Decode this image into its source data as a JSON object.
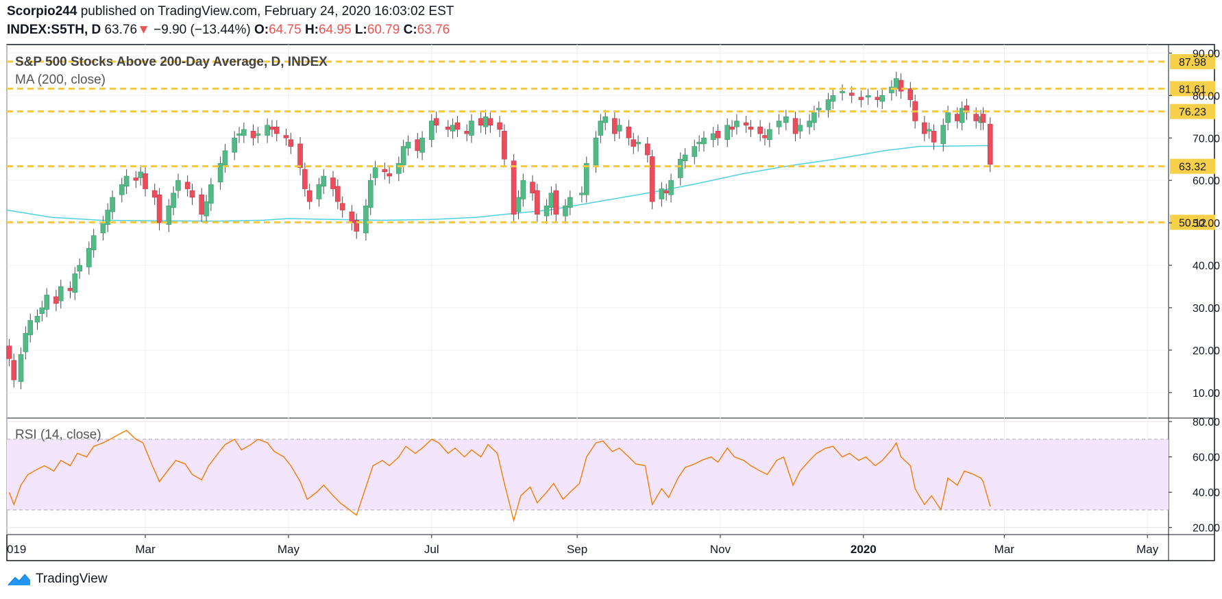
{
  "header": {
    "author": "Scorpio244",
    "published_text": "published on TradingView.com, February 24, 2020 16:03:02 EST",
    "symbol": "INDEX:S5TH, D",
    "last": "63.76",
    "change_arrow": "▼",
    "change": "−9.90 (−13.44%)",
    "open_label": "O:",
    "open": "64.75",
    "high_label": "H:",
    "high": "64.95",
    "low_label": "L:",
    "low": "60.79",
    "close_label": "C:",
    "close": "63.76"
  },
  "panes": {
    "main_title": "S&P 500 Stocks Above 200-Day Average, D, INDEX",
    "ma_title": "MA (200, close)",
    "rsi_title": "RSI (14, close)"
  },
  "logo": {
    "text": "TradingView",
    "icon": "tradingview-cloud-icon"
  },
  "colors": {
    "up": "#26a69a",
    "up_candle": "#53b987",
    "down": "#eb4d5c",
    "ma": "#4dd0e1",
    "rsi_line": "#f57c00",
    "rsi_band": "#f3e5fc",
    "level": "#f5c842",
    "level_label_bg": "#f7d04a"
  },
  "chart_data": {
    "type": "candlestick",
    "title": "S&P 500 Stocks Above 200-Day Average, D, INDEX",
    "x_range": [
      "2019-01-01",
      "2020-05-10"
    ],
    "x_ticks": [
      {
        "date": "2019-01-01",
        "label": "019"
      },
      {
        "date": "2019-03-01",
        "label": "Mar"
      },
      {
        "date": "2019-05-01",
        "label": "May"
      },
      {
        "date": "2019-07-01",
        "label": "Jul"
      },
      {
        "date": "2019-09-01",
        "label": "Sep"
      },
      {
        "date": "2019-11-01",
        "label": "Nov"
      },
      {
        "date": "2020-01-01",
        "label": "2020"
      },
      {
        "date": "2020-03-01",
        "label": "Mar"
      },
      {
        "date": "2020-05-01",
        "label": "May"
      }
    ],
    "y_range": [
      4,
      92
    ],
    "y_ticks": [
      "10.00",
      "20.00",
      "30.00",
      "40.00",
      "50.00",
      "60.00",
      "70.00",
      "80.00",
      "90.00"
    ],
    "horizontal_levels": [
      {
        "value": 87.98,
        "label": "87.98"
      },
      {
        "value": 81.61,
        "label": "81.61"
      },
      {
        "value": 76.23,
        "label": "76.23"
      },
      {
        "value": 63.32,
        "label": "63.32"
      },
      {
        "value": 50.12,
        "label": "50.12"
      }
    ],
    "close_series": [
      [
        "2019-01-02",
        18
      ],
      [
        "2019-01-04",
        13
      ],
      [
        "2019-01-07",
        19
      ],
      [
        "2019-01-09",
        24
      ],
      [
        "2019-01-11",
        27
      ],
      [
        "2019-01-14",
        28
      ],
      [
        "2019-01-16",
        30
      ],
      [
        "2019-01-18",
        33
      ],
      [
        "2019-01-22",
        31
      ],
      [
        "2019-01-24",
        35
      ],
      [
        "2019-01-28",
        34
      ],
      [
        "2019-01-30",
        38
      ],
      [
        "2019-02-01",
        40
      ],
      [
        "2019-02-05",
        44
      ],
      [
        "2019-02-07",
        47
      ],
      [
        "2019-02-11",
        50
      ],
      [
        "2019-02-13",
        53
      ],
      [
        "2019-02-15",
        56
      ],
      [
        "2019-02-19",
        59
      ],
      [
        "2019-02-21",
        61
      ],
      [
        "2019-02-25",
        60
      ],
      [
        "2019-02-27",
        62
      ],
      [
        "2019-03-01",
        58
      ],
      [
        "2019-03-05",
        56
      ],
      [
        "2019-03-07",
        50
      ],
      [
        "2019-03-11",
        54
      ],
      [
        "2019-03-13",
        57
      ],
      [
        "2019-03-15",
        60
      ],
      [
        "2019-03-19",
        58
      ],
      [
        "2019-03-21",
        56
      ],
      [
        "2019-03-25",
        52
      ],
      [
        "2019-03-27",
        55
      ],
      [
        "2019-03-29",
        59
      ],
      [
        "2019-04-02",
        64
      ],
      [
        "2019-04-04",
        67
      ],
      [
        "2019-04-08",
        70
      ],
      [
        "2019-04-10",
        71
      ],
      [
        "2019-04-12",
        72
      ],
      [
        "2019-04-16",
        70
      ],
      [
        "2019-04-18",
        71
      ],
      [
        "2019-04-22",
        73
      ],
      [
        "2019-04-24",
        72
      ],
      [
        "2019-04-26",
        71
      ],
      [
        "2019-04-30",
        70
      ],
      [
        "2019-05-02",
        68
      ],
      [
        "2019-05-06",
        63
      ],
      [
        "2019-05-08",
        58
      ],
      [
        "2019-05-10",
        55
      ],
      [
        "2019-05-14",
        59
      ],
      [
        "2019-05-16",
        61
      ],
      [
        "2019-05-20",
        58
      ],
      [
        "2019-05-22",
        55
      ],
      [
        "2019-05-24",
        53
      ],
      [
        "2019-05-28",
        50
      ],
      [
        "2019-05-30",
        48
      ],
      [
        "2019-06-03",
        54
      ],
      [
        "2019-06-05",
        60
      ],
      [
        "2019-06-07",
        63
      ],
      [
        "2019-06-11",
        62
      ],
      [
        "2019-06-13",
        61
      ],
      [
        "2019-06-17",
        64
      ],
      [
        "2019-06-19",
        68
      ],
      [
        "2019-06-21",
        69
      ],
      [
        "2019-06-25",
        67
      ],
      [
        "2019-06-27",
        70
      ],
      [
        "2019-07-01",
        74
      ],
      [
        "2019-07-03",
        73
      ],
      [
        "2019-07-08",
        72
      ],
      [
        "2019-07-10",
        73
      ],
      [
        "2019-07-12",
        72
      ],
      [
        "2019-07-16",
        71
      ],
      [
        "2019-07-18",
        74
      ],
      [
        "2019-07-22",
        73
      ],
      [
        "2019-07-24",
        75
      ],
      [
        "2019-07-26",
        73
      ],
      [
        "2019-07-30",
        72
      ],
      [
        "2019-08-01",
        65
      ],
      [
        "2019-08-05",
        52
      ],
      [
        "2019-08-07",
        56
      ],
      [
        "2019-08-09",
        60
      ],
      [
        "2019-08-13",
        57
      ],
      [
        "2019-08-15",
        52
      ],
      [
        "2019-08-19",
        54
      ],
      [
        "2019-08-21",
        57
      ],
      [
        "2019-08-23",
        52
      ],
      [
        "2019-08-27",
        54
      ],
      [
        "2019-08-29",
        56
      ],
      [
        "2019-09-03",
        57
      ],
      [
        "2019-09-05",
        64
      ],
      [
        "2019-09-09",
        70
      ],
      [
        "2019-09-11",
        74
      ],
      [
        "2019-09-13",
        75
      ],
      [
        "2019-09-17",
        71
      ],
      [
        "2019-09-19",
        73
      ],
      [
        "2019-09-23",
        70
      ],
      [
        "2019-09-25",
        68
      ],
      [
        "2019-09-27",
        69
      ],
      [
        "2019-10-01",
        66
      ],
      [
        "2019-10-03",
        55
      ],
      [
        "2019-10-07",
        58
      ],
      [
        "2019-10-09",
        57
      ],
      [
        "2019-10-11",
        60
      ],
      [
        "2019-10-15",
        65
      ],
      [
        "2019-10-17",
        66
      ],
      [
        "2019-10-21",
        68
      ],
      [
        "2019-10-23",
        69
      ],
      [
        "2019-10-25",
        70
      ],
      [
        "2019-10-29",
        71
      ],
      [
        "2019-10-31",
        70
      ],
      [
        "2019-11-04",
        73
      ],
      [
        "2019-11-06",
        72
      ],
      [
        "2019-11-08",
        74
      ],
      [
        "2019-11-12",
        73
      ],
      [
        "2019-11-14",
        72
      ],
      [
        "2019-11-18",
        71
      ],
      [
        "2019-11-20",
        70
      ],
      [
        "2019-11-22",
        72
      ],
      [
        "2019-11-26",
        74
      ],
      [
        "2019-11-29",
        75
      ],
      [
        "2019-12-03",
        71
      ],
      [
        "2019-12-05",
        73
      ],
      [
        "2019-12-09",
        74
      ],
      [
        "2019-12-11",
        76
      ],
      [
        "2019-12-13",
        77
      ],
      [
        "2019-12-17",
        79
      ],
      [
        "2019-12-19",
        80
      ],
      [
        "2019-12-23",
        81
      ],
      [
        "2019-12-27",
        80
      ],
      [
        "2019-12-31",
        79
      ],
      [
        "2020-01-03",
        80
      ],
      [
        "2020-01-07",
        79
      ],
      [
        "2020-01-09",
        80
      ],
      [
        "2020-01-13",
        82
      ],
      [
        "2020-01-15",
        84
      ],
      [
        "2020-01-17",
        81
      ],
      [
        "2020-01-21",
        79
      ],
      [
        "2020-01-23",
        74
      ],
      [
        "2020-01-27",
        71
      ],
      [
        "2020-01-29",
        72
      ],
      [
        "2020-01-31",
        69
      ],
      [
        "2020-02-04",
        73
      ],
      [
        "2020-02-06",
        76
      ],
      [
        "2020-02-10",
        74
      ],
      [
        "2020-02-12",
        77
      ],
      [
        "2020-02-14",
        76
      ],
      [
        "2020-02-18",
        74
      ],
      [
        "2020-02-20",
        75
      ],
      [
        "2020-02-21",
        73.66
      ],
      [
        "2020-02-24",
        63.76
      ]
    ],
    "ma_series": [
      [
        "2019-01-01",
        53
      ],
      [
        "2019-01-20",
        51.3
      ],
      [
        "2019-02-10",
        50.6
      ],
      [
        "2019-03-01",
        50.5
      ],
      [
        "2019-04-01",
        50.4
      ],
      [
        "2019-04-20",
        50.6
      ],
      [
        "2019-05-01",
        51.0
      ],
      [
        "2019-05-20",
        50.8
      ],
      [
        "2019-06-10",
        50.6
      ],
      [
        "2019-07-01",
        50.8
      ],
      [
        "2019-07-20",
        51.3
      ],
      [
        "2019-08-01",
        52.0
      ],
      [
        "2019-08-20",
        53.0
      ],
      [
        "2019-09-10",
        55.0
      ],
      [
        "2019-10-01",
        57.0
      ],
      [
        "2019-10-20",
        59.0
      ],
      [
        "2019-11-10",
        61.5
      ],
      [
        "2019-12-01",
        63.5
      ],
      [
        "2019-12-20",
        65.0
      ],
      [
        "2020-01-10",
        67.0
      ],
      [
        "2020-01-25",
        68.0
      ],
      [
        "2020-02-24",
        68.2
      ]
    ],
    "rsi": {
      "y_range": [
        16,
        82
      ],
      "y_ticks": [
        "20.00",
        "40.00",
        "60.00",
        "80.00"
      ],
      "band": [
        30,
        70
      ],
      "series": [
        [
          "2019-01-02",
          40
        ],
        [
          "2019-01-04",
          33
        ],
        [
          "2019-01-07",
          44
        ],
        [
          "2019-01-10",
          50
        ],
        [
          "2019-01-14",
          53
        ],
        [
          "2019-01-17",
          55
        ],
        [
          "2019-01-21",
          52
        ],
        [
          "2019-01-24",
          58
        ],
        [
          "2019-01-28",
          55
        ],
        [
          "2019-01-31",
          62
        ],
        [
          "2019-02-04",
          60
        ],
        [
          "2019-02-07",
          66
        ],
        [
          "2019-02-11",
          68
        ],
        [
          "2019-02-14",
          70
        ],
        [
          "2019-02-18",
          73
        ],
        [
          "2019-02-21",
          75
        ],
        [
          "2019-02-25",
          70
        ],
        [
          "2019-02-28",
          68
        ],
        [
          "2019-03-04",
          55
        ],
        [
          "2019-03-07",
          46
        ],
        [
          "2019-03-11",
          53
        ],
        [
          "2019-03-14",
          58
        ],
        [
          "2019-03-18",
          56
        ],
        [
          "2019-03-21",
          50
        ],
        [
          "2019-03-25",
          47
        ],
        [
          "2019-03-28",
          55
        ],
        [
          "2019-04-01",
          62
        ],
        [
          "2019-04-04",
          67
        ],
        [
          "2019-04-08",
          70
        ],
        [
          "2019-04-11",
          64
        ],
        [
          "2019-04-15",
          67
        ],
        [
          "2019-04-18",
          70
        ],
        [
          "2019-04-22",
          68
        ],
        [
          "2019-04-25",
          63
        ],
        [
          "2019-04-29",
          60
        ],
        [
          "2019-05-02",
          55
        ],
        [
          "2019-05-06",
          46
        ],
        [
          "2019-05-09",
          36
        ],
        [
          "2019-05-13",
          40
        ],
        [
          "2019-05-16",
          44
        ],
        [
          "2019-05-20",
          38
        ],
        [
          "2019-05-23",
          34
        ],
        [
          "2019-05-27",
          30
        ],
        [
          "2019-05-30",
          27
        ],
        [
          "2019-06-03",
          43
        ],
        [
          "2019-06-06",
          55
        ],
        [
          "2019-06-10",
          58
        ],
        [
          "2019-06-13",
          55
        ],
        [
          "2019-06-17",
          60
        ],
        [
          "2019-06-20",
          66
        ],
        [
          "2019-06-24",
          62
        ],
        [
          "2019-06-27",
          65
        ],
        [
          "2019-07-01",
          70
        ],
        [
          "2019-07-04",
          68
        ],
        [
          "2019-07-08",
          62
        ],
        [
          "2019-07-11",
          65
        ],
        [
          "2019-07-15",
          60
        ],
        [
          "2019-07-18",
          64
        ],
        [
          "2019-07-22",
          60
        ],
        [
          "2019-07-25",
          67
        ],
        [
          "2019-07-29",
          62
        ],
        [
          "2019-08-01",
          45
        ],
        [
          "2019-08-05",
          24
        ],
        [
          "2019-08-08",
          38
        ],
        [
          "2019-08-12",
          43
        ],
        [
          "2019-08-15",
          34
        ],
        [
          "2019-08-19",
          40
        ],
        [
          "2019-08-22",
          45
        ],
        [
          "2019-08-26",
          36
        ],
        [
          "2019-08-29",
          40
        ],
        [
          "2019-09-02",
          45
        ],
        [
          "2019-09-05",
          60
        ],
        [
          "2019-09-09",
          68
        ],
        [
          "2019-09-12",
          69
        ],
        [
          "2019-09-16",
          63
        ],
        [
          "2019-09-19",
          65
        ],
        [
          "2019-09-23",
          60
        ],
        [
          "2019-09-26",
          56
        ],
        [
          "2019-09-30",
          55
        ],
        [
          "2019-10-03",
          33
        ],
        [
          "2019-10-07",
          42
        ],
        [
          "2019-10-10",
          37
        ],
        [
          "2019-10-14",
          48
        ],
        [
          "2019-10-17",
          54
        ],
        [
          "2019-10-21",
          56
        ],
        [
          "2019-10-24",
          58
        ],
        [
          "2019-10-28",
          60
        ],
        [
          "2019-10-31",
          57
        ],
        [
          "2019-11-04",
          65
        ],
        [
          "2019-11-07",
          60
        ],
        [
          "2019-11-11",
          58
        ],
        [
          "2019-11-14",
          55
        ],
        [
          "2019-11-18",
          52
        ],
        [
          "2019-11-21",
          50
        ],
        [
          "2019-11-25",
          58
        ],
        [
          "2019-11-28",
          60
        ],
        [
          "2019-12-02",
          44
        ],
        [
          "2019-12-05",
          52
        ],
        [
          "2019-12-09",
          58
        ],
        [
          "2019-12-12",
          62
        ],
        [
          "2019-12-16",
          65
        ],
        [
          "2019-12-19",
          66
        ],
        [
          "2019-12-23",
          60
        ],
        [
          "2019-12-26",
          62
        ],
        [
          "2019-12-30",
          58
        ],
        [
          "2020-01-02",
          60
        ],
        [
          "2020-01-06",
          55
        ],
        [
          "2020-01-09",
          58
        ],
        [
          "2020-01-13",
          64
        ],
        [
          "2020-01-15",
          68
        ],
        [
          "2020-01-17",
          60
        ],
        [
          "2020-01-21",
          55
        ],
        [
          "2020-01-23",
          42
        ],
        [
          "2020-01-27",
          33
        ],
        [
          "2020-01-30",
          38
        ],
        [
          "2020-02-03",
          30
        ],
        [
          "2020-02-06",
          48
        ],
        [
          "2020-02-10",
          44
        ],
        [
          "2020-02-13",
          52
        ],
        [
          "2020-02-17",
          50
        ],
        [
          "2020-02-20",
          48
        ],
        [
          "2020-02-21",
          46
        ],
        [
          "2020-02-24",
          32
        ]
      ]
    }
  }
}
